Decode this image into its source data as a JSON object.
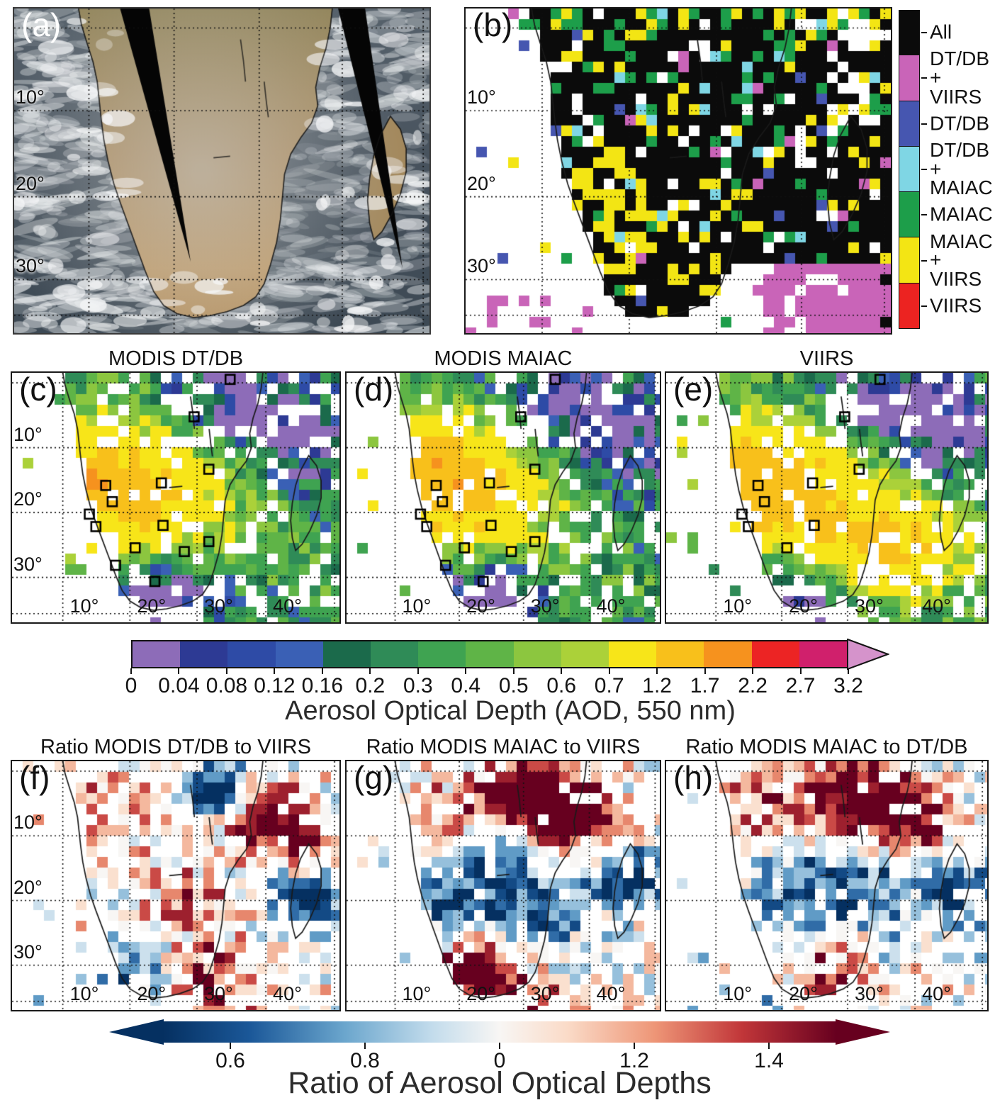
{
  "panel_labels": {
    "a": "(a)",
    "b": "(b)",
    "c": "(c)",
    "d": "(d)",
    "e": "(e)",
    "f": "(f)",
    "g": "(g)",
    "h": "(h)"
  },
  "row2_titles": {
    "c": "MODIS DT/DB",
    "d": "MODIS MAIAC",
    "e": "VIIRS"
  },
  "row3_titles": {
    "f": "Ratio MODIS DT/DB to VIIRS",
    "g": "Ratio MODIS MAIAC to VIIRS",
    "h": "Ratio MODIS MAIAC to DT/DB"
  },
  "lat_labels": [
    "10°",
    "20°",
    "30°"
  ],
  "lon_labels": [
    "10°",
    "20°",
    "30°",
    "40°"
  ],
  "coverage_legend": {
    "entries": [
      {
        "lines": [
          "All"
        ],
        "color": "#0b0b0b"
      },
      {
        "lines": [
          "DT/DB",
          "+",
          "VIIRS"
        ],
        "color": "#c964b8"
      },
      {
        "lines": [
          "DT/DB"
        ],
        "color": "#4656b0"
      },
      {
        "lines": [
          "DT/DB",
          "+",
          "MAIAC"
        ],
        "color": "#7fd6e4"
      },
      {
        "lines": [
          "MAIAC"
        ],
        "color": "#1d9e4a"
      },
      {
        "lines": [
          "MAIAC",
          "+",
          "VIIRS"
        ],
        "color": "#f3e514"
      },
      {
        "lines": [
          "VIIRS"
        ],
        "color": "#ec2321"
      }
    ]
  },
  "aod_colorbar": {
    "title": "Aerosol Optical Depth (AOD, 550 nm)",
    "tick_labels": [
      "0",
      "0.04",
      "0.08",
      "0.12",
      "0.16",
      "0.2",
      "0.3",
      "0.4",
      "0.5",
      "0.6",
      "0.7",
      "1.2",
      "1.7",
      "2.2",
      "2.7",
      "3.2"
    ],
    "boundaries": [
      0,
      0.04,
      0.08,
      0.12,
      0.16,
      0.2,
      0.3,
      0.4,
      0.5,
      0.6,
      0.7,
      1.2,
      1.7,
      2.2,
      2.7,
      3.2
    ],
    "segment_colors": [
      "#8d6cb8",
      "#2d3a94",
      "#2e4ba6",
      "#3a60b5",
      "#1b6a4b",
      "#2f8b57",
      "#3fa351",
      "#5fb447",
      "#8cc63f",
      "#abd139",
      "#f7e519",
      "#f8c01b",
      "#f6921e",
      "#ec2424",
      "#d0206c"
    ],
    "overflow_color": "#d593cb"
  },
  "ratio_colorbar": {
    "title": "Ratio of Aerosol Optical Depths",
    "tick_labels": [
      "0.6",
      "0.8",
      "0",
      "1.2",
      "1.4"
    ],
    "gradient_stops": [
      [
        0,
        "#053061"
      ],
      [
        0.13,
        "#1b5899"
      ],
      [
        0.27,
        "#6ba6cd"
      ],
      [
        0.4,
        "#c3dcec"
      ],
      [
        0.5,
        "#f8f6f4"
      ],
      [
        0.6,
        "#fadbc8"
      ],
      [
        0.73,
        "#ee9677"
      ],
      [
        0.86,
        "#c13639"
      ],
      [
        1,
        "#67001f"
      ]
    ]
  },
  "chart_data": [
    {
      "panel": "a",
      "type": "heatmap",
      "subtype": "true-color-satellite",
      "description": "True-color satellite view of southern Africa and Madagascar: brown/tan land with grey smoke haze over the interior, marine stratocumulus clouds over the surrounding oceans, and two black diagonal no-data swath gaps; dotted lat/lon graticule.",
      "lat_ticks": [
        "10°",
        "20°",
        "30°"
      ]
    },
    {
      "panel": "b",
      "type": "heatmap",
      "subtype": "categorical-coverage",
      "categories": [
        "All",
        "DT/DB + VIIRS",
        "DT/DB",
        "DT/DB + MAIAC",
        "MAIAC",
        "MAIAC + VIIRS",
        "VIIRS"
      ],
      "category_colors": [
        "#0b0b0b",
        "#c964b8",
        "#4656b0",
        "#7fd6e4",
        "#1d9e4a",
        "#f3e514",
        "#ec2321"
      ],
      "pattern": "Black (All) dominates over land and the Mozambique Channel/Madagascar; yellow (MAIAC+VIIRS) clusters over western-central land; magenta (DT/DB+VIIRS) fills the ocean south-east of Madagascar and speckles the south-west ocean; scattered green, cyan and blue cells; white = no retrieval.",
      "lat_ticks": [
        "10°",
        "20°",
        "30°"
      ],
      "legend_position": "right"
    },
    {
      "panel": "c",
      "type": "heatmap",
      "title": "MODIS DT/DB",
      "scale": "AOD 550 nm",
      "lat_ticks": [
        "10°",
        "20°",
        "30°"
      ],
      "lon_ticks": [
        "10°",
        "20°",
        "30°",
        "40°"
      ],
      "markers": "black square site markers",
      "pattern": "High AOD (0.7-2.2, yellow-orange) over Angola/Zambia; moderate (0.3-0.6, green) across the central subcontinent; low (0.04-0.16, blue) to the north-east and east of Madagascar; very low (<0.04, purple) over interior South Africa; white = no retrieval."
    },
    {
      "panel": "d",
      "type": "heatmap",
      "title": "MODIS MAIAC",
      "scale": "AOD 550 nm",
      "lat_ticks": [
        "10°",
        "20°",
        "30°"
      ],
      "lon_ticks": [
        "10°",
        "20°",
        "30°",
        "40°"
      ],
      "markers": "black square site markers",
      "pattern": "Similar to DT/DB: yellow high-AOD core in the west-central region, green mid values, blue low values north-east, purple minimum over South Africa."
    },
    {
      "panel": "e",
      "type": "heatmap",
      "title": "VIIRS",
      "scale": "AOD 550 nm",
      "lat_ticks": [
        "10°",
        "20°",
        "30°"
      ],
      "lon_ticks": [
        "10°",
        "20°",
        "30°",
        "40°"
      ],
      "markers": "black square site markers",
      "pattern": "Yellow high-AOD band extends farther south-east (0.7-1.2 near 25-30°S); dark blue ocean values south and east; purple minimum south-central; white ocean west with scattered green cells."
    },
    {
      "panel": "f",
      "type": "heatmap",
      "title": "Ratio MODIS DT/DB to VIIRS",
      "scale": "ratio",
      "lat_ticks": [
        "10°",
        "20°",
        "30°"
      ],
      "lon_ticks": [
        "10°",
        "20°",
        "30°",
        "40°"
      ],
      "pattern": "Scattered red/blue mosaic: dark-red (>1.4) clusters north-central and near 40°E north; dark-navy (<0.6) patches around 10-15°S mid-longitudes and along the south coast; mostly white (no common retrievals) elsewhere."
    },
    {
      "panel": "g",
      "type": "heatmap",
      "title": "Ratio MODIS MAIAC to VIIRS",
      "scale": "ratio",
      "lat_ticks": [
        "10°",
        "20°",
        "30°"
      ],
      "lon_ticks": [
        "10°",
        "20°",
        "30°",
        "40°"
      ],
      "pattern": "Large dark-red (>1.4) region across the north; blue (<0.8) band near 20°S; strong mixed reds/blues along 30°S and the south coast."
    },
    {
      "panel": "h",
      "type": "heatmap",
      "title": "Ratio MODIS MAIAC to DT/DB",
      "scale": "ratio",
      "lat_ticks": [
        "10°",
        "20°",
        "30°"
      ],
      "lon_ticks": [
        "10°",
        "20°",
        "30°",
        "40°"
      ],
      "pattern": "Dark-red (>1.4) cluster in the north-central/north-east; light-blue band near 20°S; mixed strong values in the south-west."
    },
    {
      "colorbar": "aod",
      "title": "Aerosol Optical Depth (AOD, 550 nm)",
      "boundaries": [
        0,
        0.04,
        0.08,
        0.12,
        0.16,
        0.2,
        0.3,
        0.4,
        0.5,
        0.6,
        0.7,
        1.2,
        1.7,
        2.2,
        2.7,
        3.2
      ],
      "colors": [
        "#8d6cb8",
        "#2d3a94",
        "#2e4ba6",
        "#3a60b5",
        "#1b6a4b",
        "#2f8b57",
        "#3fa351",
        "#5fb447",
        "#8cc63f",
        "#abd139",
        "#f7e519",
        "#f8c01b",
        "#f6921e",
        "#ec2424",
        "#d0206c"
      ],
      "overflow_color": "#d593cb",
      "orientation": "horizontal",
      "arrow": "right"
    },
    {
      "colorbar": "ratio",
      "title": "Ratio of Aerosol Optical Depths",
      "tick_labels": [
        "0.6",
        "0.8",
        "0",
        "1.2",
        "1.4"
      ],
      "type": "diverging blue-white-red",
      "orientation": "horizontal",
      "arrows": "both"
    }
  ],
  "render": {
    "cell": 15,
    "aod_base": 0.33,
    "aod_base_blobs": [
      [
        0.3,
        0.42,
        0.22,
        0.75
      ],
      [
        0.42,
        0.55,
        0.25,
        0.45
      ],
      [
        0.55,
        0.33,
        0.28,
        0.22
      ],
      [
        0.66,
        0.14,
        0.22,
        -0.42
      ],
      [
        0.9,
        0.28,
        0.22,
        -0.28
      ],
      [
        0.42,
        0.88,
        0.18,
        -0.55
      ],
      [
        0.16,
        0.3,
        0.12,
        0.3
      ]
    ],
    "panels": {
      "b": {
        "kind": "coverage",
        "seed": 7
      },
      "c": {
        "kind": "aod",
        "seed": 11,
        "extra": [
          [
            0.205,
            0.42,
            0.05,
            1.0
          ]
        ]
      },
      "d": {
        "kind": "aod",
        "seed": 23,
        "extra": [
          [
            0.3,
            0.3,
            0.15,
            0.25
          ]
        ]
      },
      "e": {
        "kind": "aod",
        "seed": 37,
        "extra": [
          [
            0.62,
            0.72,
            0.2,
            0.6
          ],
          [
            0.78,
            0.66,
            0.18,
            0.45
          ]
        ]
      },
      "f": {
        "kind": "ratio",
        "seed": 51,
        "blobs": [
          [
            0.62,
            0.13,
            0.1,
            -0.75
          ],
          [
            0.76,
            0.2,
            0.13,
            0.55
          ],
          [
            0.3,
            0.18,
            0.18,
            0.22
          ],
          [
            0.52,
            0.52,
            0.16,
            0.25
          ],
          [
            0.38,
            0.86,
            0.16,
            -0.5
          ],
          [
            0.56,
            0.88,
            0.18,
            0.5
          ],
          [
            0.9,
            0.52,
            0.1,
            -0.55
          ],
          [
            0.86,
            0.3,
            0.12,
            0.45
          ]
        ]
      },
      "g": {
        "kind": "ratio",
        "seed": 77,
        "blobs": [
          [
            0.58,
            0.15,
            0.16,
            0.8
          ],
          [
            0.74,
            0.25,
            0.14,
            0.6
          ],
          [
            0.28,
            0.22,
            0.16,
            0.3
          ],
          [
            0.48,
            0.5,
            0.25,
            -0.5
          ],
          [
            0.45,
            0.82,
            0.22,
            0.65
          ],
          [
            0.88,
            0.45,
            0.12,
            -0.5
          ],
          [
            0.3,
            0.6,
            0.12,
            -0.3
          ],
          [
            0.6,
            0.7,
            0.12,
            -0.45
          ]
        ]
      },
      "h": {
        "kind": "ratio",
        "seed": 93,
        "blobs": [
          [
            0.58,
            0.15,
            0.16,
            0.75
          ],
          [
            0.76,
            0.22,
            0.13,
            0.55
          ],
          [
            0.28,
            0.2,
            0.16,
            0.3
          ],
          [
            0.5,
            0.5,
            0.25,
            -0.45
          ],
          [
            0.42,
            0.84,
            0.2,
            0.6
          ],
          [
            0.88,
            0.5,
            0.12,
            -0.4
          ],
          [
            0.33,
            0.88,
            0.15,
            -0.5
          ]
        ]
      }
    },
    "sites": [
      [
        0.665,
        0.025
      ],
      [
        0.555,
        0.175
      ],
      [
        0.6,
        0.385
      ],
      [
        0.455,
        0.44
      ],
      [
        0.285,
        0.45
      ],
      [
        0.305,
        0.515
      ],
      [
        0.235,
        0.565
      ],
      [
        0.255,
        0.615
      ],
      [
        0.46,
        0.61
      ],
      [
        0.375,
        0.7
      ],
      [
        0.525,
        0.715
      ],
      [
        0.6,
        0.675
      ],
      [
        0.315,
        0.77
      ],
      [
        0.435,
        0.835
      ]
    ]
  }
}
